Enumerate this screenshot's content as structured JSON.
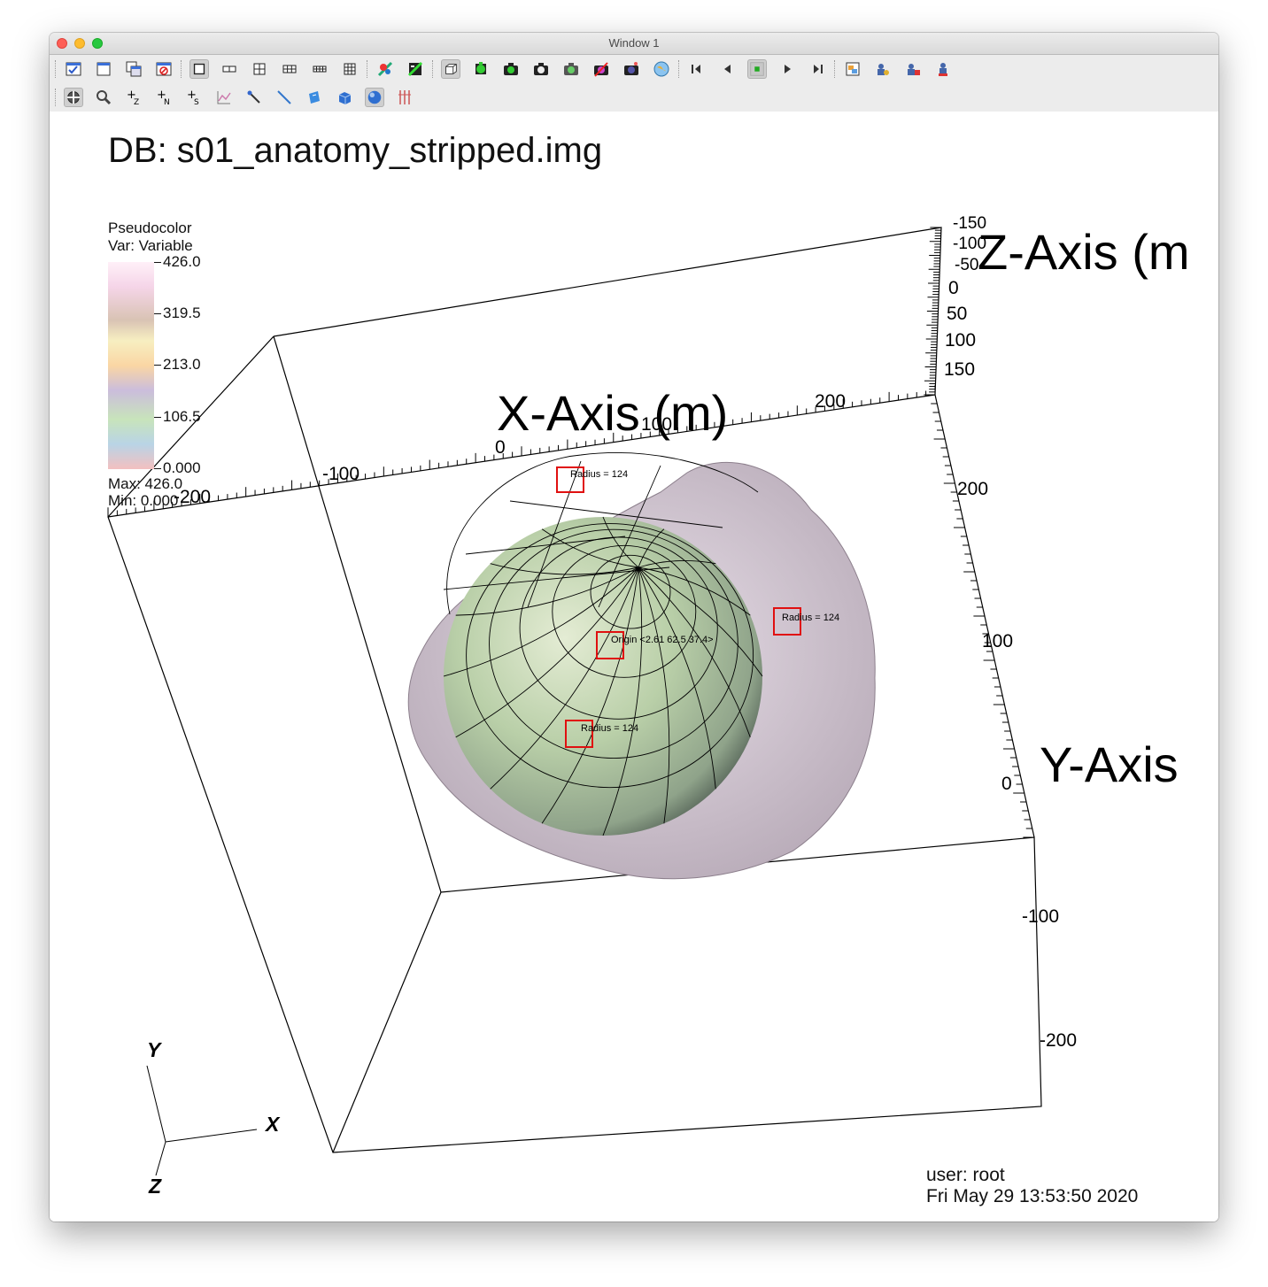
{
  "window": {
    "title": "Window 1"
  },
  "toolbar1": {
    "icons": [
      "window-active-icon",
      "new-window-icon",
      "clone-window-icon",
      "delete-window-icon",
      "layout-1x1-icon",
      "layout-1x2-icon",
      "layout-2x2-icon",
      "layout-2x3-icon",
      "layout-2x4-icon",
      "layout-3x3-icon",
      "spin-mode-icon",
      "fullframe-icon",
      "view-3d-icon",
      "add-plots-icon",
      "camera-icon",
      "camera-save-icon",
      "camera-view-icon",
      "camera-strike-icon",
      "camera-flash-icon",
      "globe-icon",
      "first-frame-icon",
      "prev-frame-icon",
      "stop-icon",
      "play-icon",
      "last-frame-icon",
      "expressions-icon",
      "lock-view-icon",
      "lock-time-icon",
      "lock-tools-icon"
    ]
  },
  "toolbar2": {
    "icons": [
      "navigate-icon",
      "zoom-icon",
      "zone-pick-icon",
      "node-pick-icon",
      "spreadsheet-pick-icon",
      "lineout-icon",
      "pick-tool-icon",
      "line-tool-icon",
      "plane-tool-icon",
      "box-tool-icon",
      "sphere-tool-icon",
      "axis-restriction-icon"
    ]
  },
  "plot": {
    "db_title": "DB: s01_anatomy_stripped.img",
    "legend": {
      "title": "Pseudocolor",
      "var": "Var: Variable",
      "ticks": [
        "426.0",
        "319.5",
        "213.0",
        "106.5",
        "0.000"
      ],
      "max": "Max:  426.0",
      "min": "Min:  0.000"
    },
    "x_axis": {
      "title": "X-Axis (m)",
      "labels": [
        "-200",
        "-100",
        "0",
        "100",
        "200"
      ]
    },
    "y_axis": {
      "title": "Y-Axis",
      "labels": [
        "200",
        "100",
        "0",
        "-100",
        "-200"
      ]
    },
    "z_axis": {
      "title": "Z-Axis (m",
      "labels": [
        "-150",
        "-100",
        "-50",
        "0",
        "50",
        "100",
        "150"
      ]
    },
    "sphere_tool": {
      "radius_label": "Radius = 124",
      "origin_label": "Origin <2.61 62.5 37.4>"
    },
    "triad": {
      "x": "X",
      "y": "Y",
      "z": "Z"
    },
    "colors": {
      "sphere": "#b9cfa8",
      "surface": "#d8cdd8",
      "handle": "#e01010"
    },
    "user": "user: root",
    "date": "Fri May 29 13:53:50 2020"
  }
}
